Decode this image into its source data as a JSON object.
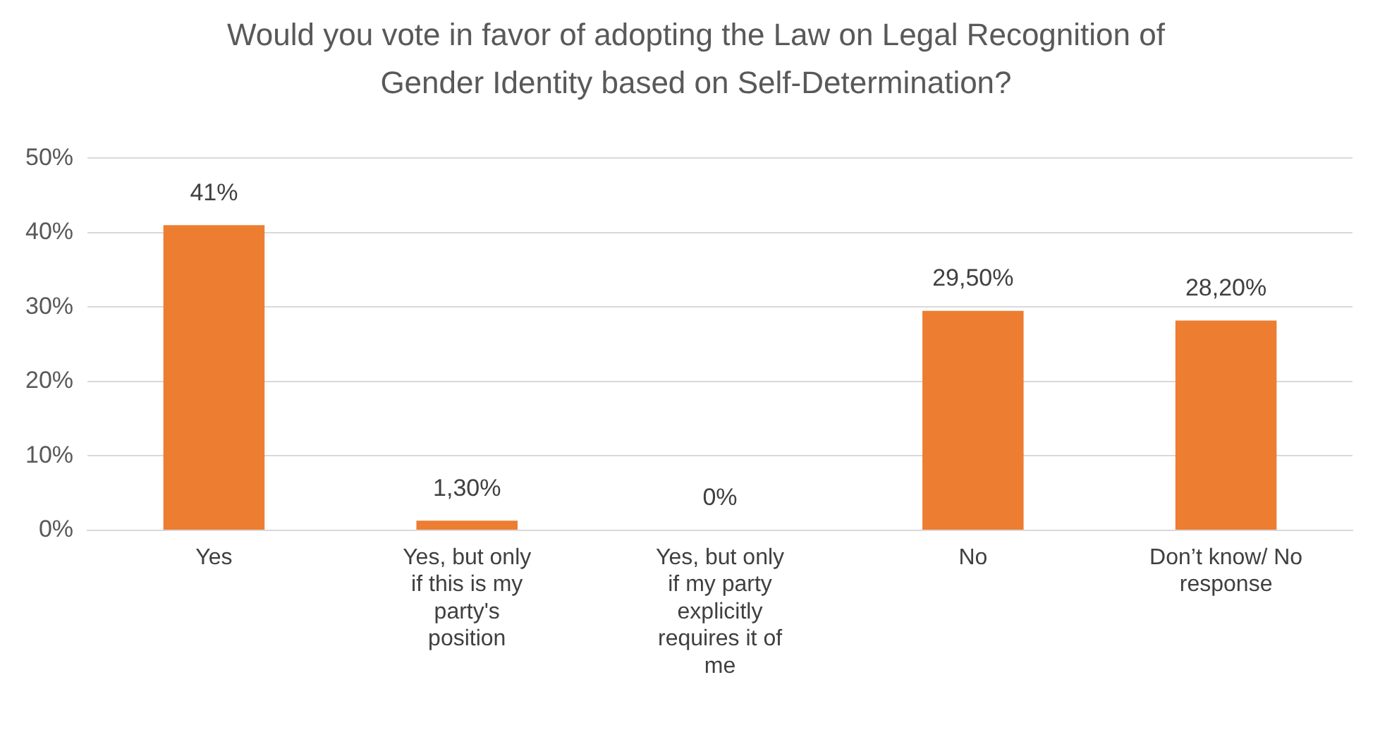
{
  "chart_data": {
    "type": "bar",
    "title": "Would you vote in favor of adopting the Law on Legal Recognition of Gender Identity based on Self-Determination?",
    "categories": [
      "Yes",
      "Yes, but only if this is my party's position",
      "Yes, but only if my party explicitly requires it of me",
      "No",
      "Don’t know/ No response"
    ],
    "values": [
      41,
      1.3,
      0,
      29.5,
      28.2
    ],
    "value_labels": [
      "41%",
      "1,30%",
      "0%",
      "29,50%",
      "28,20%"
    ],
    "color": "#ed7d31",
    "ylim": [
      0,
      50
    ],
    "yticks": [
      {
        "value": 0,
        "label": "0%"
      },
      {
        "value": 10,
        "label": "10%"
      },
      {
        "value": 20,
        "label": "20%"
      },
      {
        "value": 30,
        "label": "30%"
      },
      {
        "value": 40,
        "label": "40%"
      },
      {
        "value": 50,
        "label": "50%"
      }
    ],
    "grid": "y",
    "legend": false
  }
}
